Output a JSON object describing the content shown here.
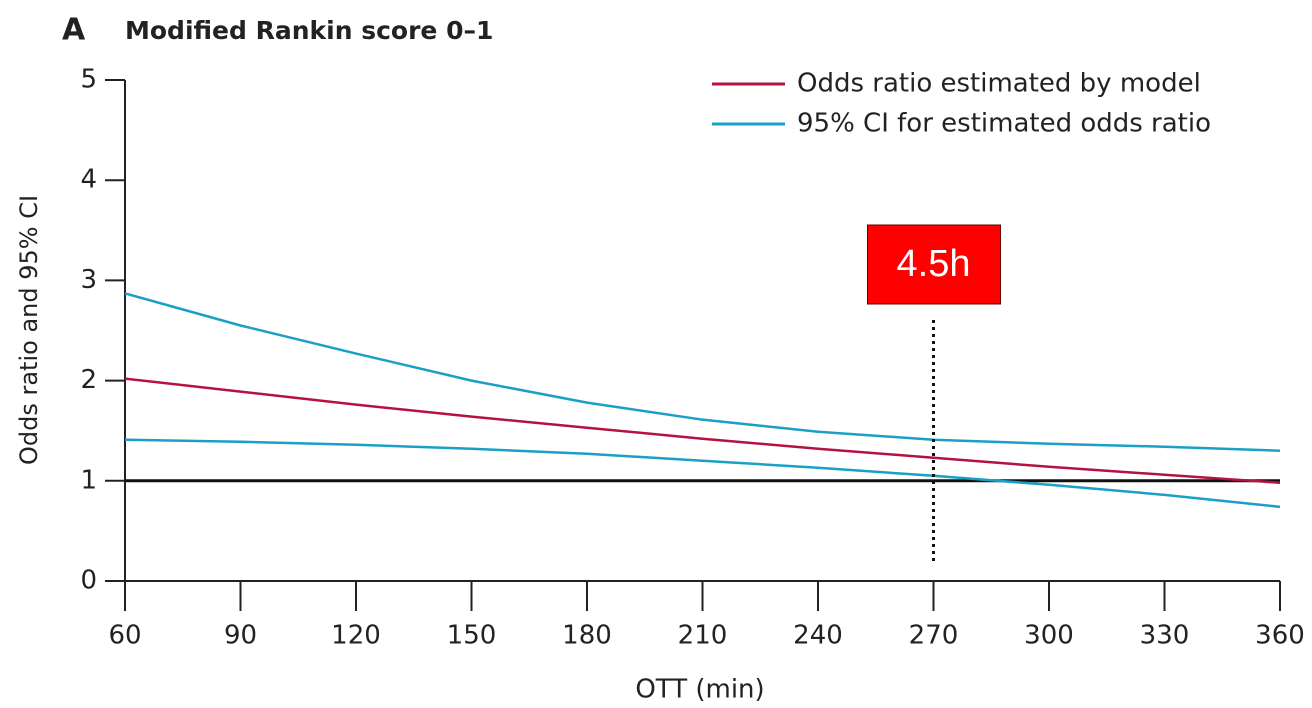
{
  "chart_data": {
    "type": "line",
    "panel_label": "A",
    "title": "Modified Rankin score 0–1",
    "x_label": "OTT (min)",
    "y_label": "Odds ratio and 95% CI",
    "x": [
      60,
      90,
      120,
      150,
      180,
      210,
      240,
      270,
      300,
      330,
      360
    ],
    "series": [
      {
        "name": "Odds ratio estimated by model",
        "color": "#b5123f",
        "values": [
          2.02,
          1.89,
          1.76,
          1.64,
          1.53,
          1.42,
          1.32,
          1.23,
          1.14,
          1.06,
          0.98
        ]
      },
      {
        "name": "95% CI for estimated odds ratio",
        "color": "#1a9fc6",
        "values": [
          2.87,
          2.55,
          2.27,
          2.0,
          1.78,
          1.61,
          1.49,
          1.41,
          1.37,
          1.34,
          1.3
        ],
        "lower": [
          1.41,
          1.39,
          1.36,
          1.32,
          1.27,
          1.2,
          1.13,
          1.05,
          0.96,
          0.86,
          0.74
        ]
      }
    ],
    "xlim": [
      60,
      360
    ],
    "xticks": [
      60,
      90,
      120,
      150,
      180,
      210,
      240,
      270,
      300,
      330,
      360
    ],
    "ylim": [
      0,
      5
    ],
    "yticks": [
      0,
      1,
      2,
      3,
      4,
      5
    ],
    "reference_line": 1,
    "annotation": {
      "text": "4.5h",
      "x": 270,
      "color": "#ff0000"
    },
    "legend": "upper right",
    "grid": false
  }
}
